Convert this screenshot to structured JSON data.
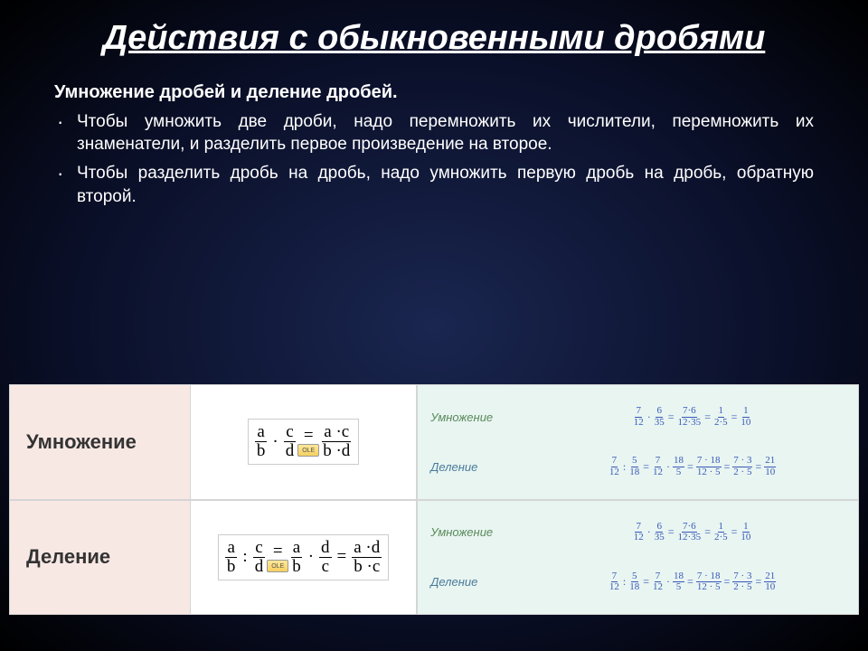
{
  "title": "Действия с обыкновенными дробями",
  "subtitle": "Умножение  дробей и деление дробей.",
  "bullets": [
    "Чтобы умножить две дроби, надо перемножить их числители,  перемножить их знаменатели, и разделить первое произведение на второе.",
    "Чтобы разделить дробь на дробь, надо умножить первую дробь на дробь, обратную второй."
  ],
  "table": {
    "rows": [
      {
        "label": "Умножение",
        "formula": "mul"
      },
      {
        "label": "Деление",
        "formula": "div"
      }
    ]
  },
  "formula_text": {
    "a": "a",
    "b": "b",
    "c": "c",
    "d": "d",
    "ac": "a ·c",
    "bd": "b ·d",
    "ad": "a ·d",
    "bc": "b ·c",
    "dot": "·",
    "colon": ":",
    "eq": "="
  },
  "examples": {
    "mul_label": "Умножение",
    "div_label": "Деление",
    "mul": {
      "a": "7",
      "b": "12",
      "c": "6",
      "d": "35",
      "step_n": "7·6",
      "step_d": "12·35",
      "r1n": "1",
      "r1d": "2·5",
      "r2n": "1",
      "r2d": "10"
    },
    "div": {
      "a": "7",
      "b": "12",
      "c": "5",
      "d": "18",
      "inv_n": "18",
      "inv_d": "5",
      "step_n": "7 · 18",
      "step_d": "12 · 5",
      "r1n": "7 · 3",
      "r1d": "2 · 5",
      "r2n": "21",
      "r2d": "10"
    }
  },
  "colors": {
    "label_bg": "#f8e8e4",
    "example_bg": "#e8f5f1",
    "eq_color": "#3858b8"
  },
  "ole": "OLE"
}
